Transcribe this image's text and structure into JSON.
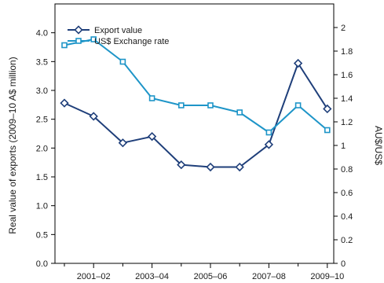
{
  "chart_data": {
    "type": "line",
    "x": [
      "2000-01",
      "2001-02",
      "2002-03",
      "2003-04",
      "2004-05",
      "2005-06",
      "2006-07",
      "2007-08",
      "2008-09",
      "2009-10"
    ],
    "x_tick_labels": [
      "2001–02",
      "2003–04",
      "2005–06",
      "2007–08",
      "2009–10"
    ],
    "series": [
      {
        "name": "Export value",
        "axis": "left",
        "color": "#1f3f7a",
        "marker": "diamond",
        "values": [
          2.78,
          2.55,
          2.09,
          2.2,
          1.71,
          1.67,
          1.67,
          2.06,
          3.47,
          2.68
        ]
      },
      {
        "name": "US$ Exchange rate",
        "axis": "right",
        "color": "#1e95c8",
        "marker": "square",
        "values": [
          1.85,
          1.9,
          1.71,
          1.4,
          1.34,
          1.34,
          1.28,
          1.11,
          1.34,
          1.13
        ]
      }
    ],
    "y_left": {
      "label": "Real value of exports (2009–10 A$ million)",
      "lim": [
        0,
        4.5
      ],
      "ticks": [
        "0.0",
        "0.5",
        "1.0",
        "1.5",
        "2.0",
        "2.5",
        "3.0",
        "3.5",
        "4.0"
      ]
    },
    "y_right": {
      "label": "AU$/US$",
      "lim": [
        0,
        2.2
      ],
      "ticks": [
        "0",
        "0.2",
        "0.4",
        "0.6",
        "0.8",
        "1",
        "1.2",
        "1.4",
        "1.6",
        "1.8",
        "2"
      ]
    },
    "legend_position": "top-left",
    "grid": false
  }
}
